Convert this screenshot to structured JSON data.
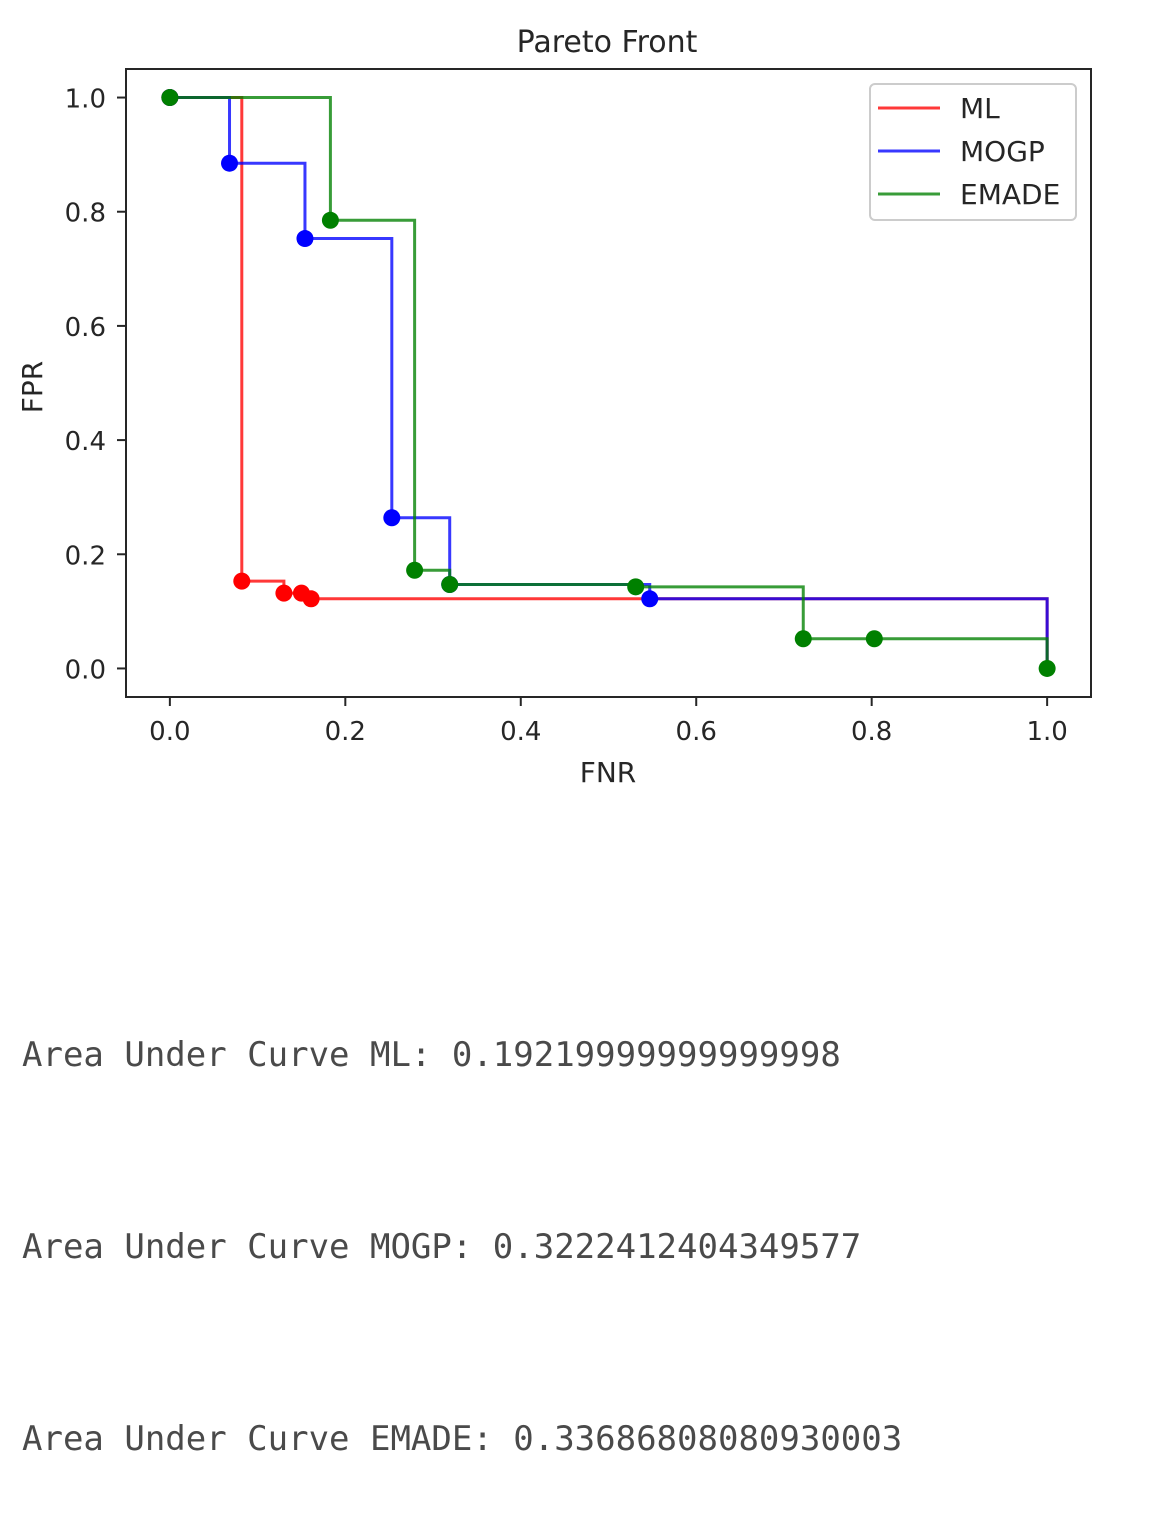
{
  "chart_data": {
    "type": "line",
    "title": "Pareto Front",
    "xlabel": "FNR",
    "ylabel": "FPR",
    "xlim": [
      -0.05,
      1.05
    ],
    "ylim": [
      -0.05,
      1.05
    ],
    "xticks": [
      0.0,
      0.2,
      0.4,
      0.6,
      0.8,
      1.0
    ],
    "yticks": [
      0.0,
      0.2,
      0.4,
      0.6,
      0.8,
      1.0
    ],
    "xtick_labels": [
      "0.0",
      "0.2",
      "0.4",
      "0.6",
      "0.8",
      "1.0"
    ],
    "ytick_labels": [
      "0.0",
      "0.2",
      "0.4",
      "0.6",
      "0.8",
      "1.0"
    ],
    "grid": false,
    "legend_position": "top-right",
    "series": [
      {
        "name": "ML",
        "color": "#ff0000",
        "points": [
          [
            0.0,
            1.0
          ],
          [
            0.082,
            0.153
          ],
          [
            0.13,
            0.132
          ],
          [
            0.15,
            0.132
          ],
          [
            0.161,
            0.122
          ],
          [
            1.0,
            0.0
          ]
        ],
        "markers": [
          [
            0.0,
            1.0
          ],
          [
            0.082,
            0.153
          ],
          [
            0.13,
            0.132
          ],
          [
            0.15,
            0.132
          ],
          [
            0.161,
            0.122
          ]
        ]
      },
      {
        "name": "MOGP",
        "color": "#0000ff",
        "points": [
          [
            0.0,
            1.0
          ],
          [
            0.068,
            0.885
          ],
          [
            0.154,
            0.753
          ],
          [
            0.253,
            0.264
          ],
          [
            0.319,
            0.147
          ],
          [
            0.547,
            0.122
          ],
          [
            1.0,
            0.0
          ]
        ],
        "markers": [
          [
            0.0,
            1.0
          ],
          [
            0.068,
            0.885
          ],
          [
            0.154,
            0.753
          ],
          [
            0.253,
            0.264
          ],
          [
            0.319,
            0.147
          ],
          [
            0.547,
            0.122
          ]
        ]
      },
      {
        "name": "EMADE",
        "color": "#008000",
        "points": [
          [
            0.0,
            1.0
          ],
          [
            0.183,
            0.785
          ],
          [
            0.279,
            0.172
          ],
          [
            0.319,
            0.147
          ],
          [
            0.531,
            0.143
          ],
          [
            0.722,
            0.052
          ],
          [
            0.803,
            0.052
          ],
          [
            1.0,
            0.0
          ]
        ],
        "markers": [
          [
            0.0,
            1.0
          ],
          [
            0.183,
            0.785
          ],
          [
            0.279,
            0.172
          ],
          [
            0.319,
            0.147
          ],
          [
            0.531,
            0.143
          ],
          [
            0.722,
            0.052
          ],
          [
            0.803,
            0.052
          ],
          [
            1.0,
            0.0
          ]
        ]
      }
    ]
  },
  "output_lines": [
    "Area Under Curve ML: 0.19219999999999998",
    "Area Under Curve MOGP: 0.3222412404349577",
    "Area Under Curve EMADE: 0.33686808080930003"
  ]
}
